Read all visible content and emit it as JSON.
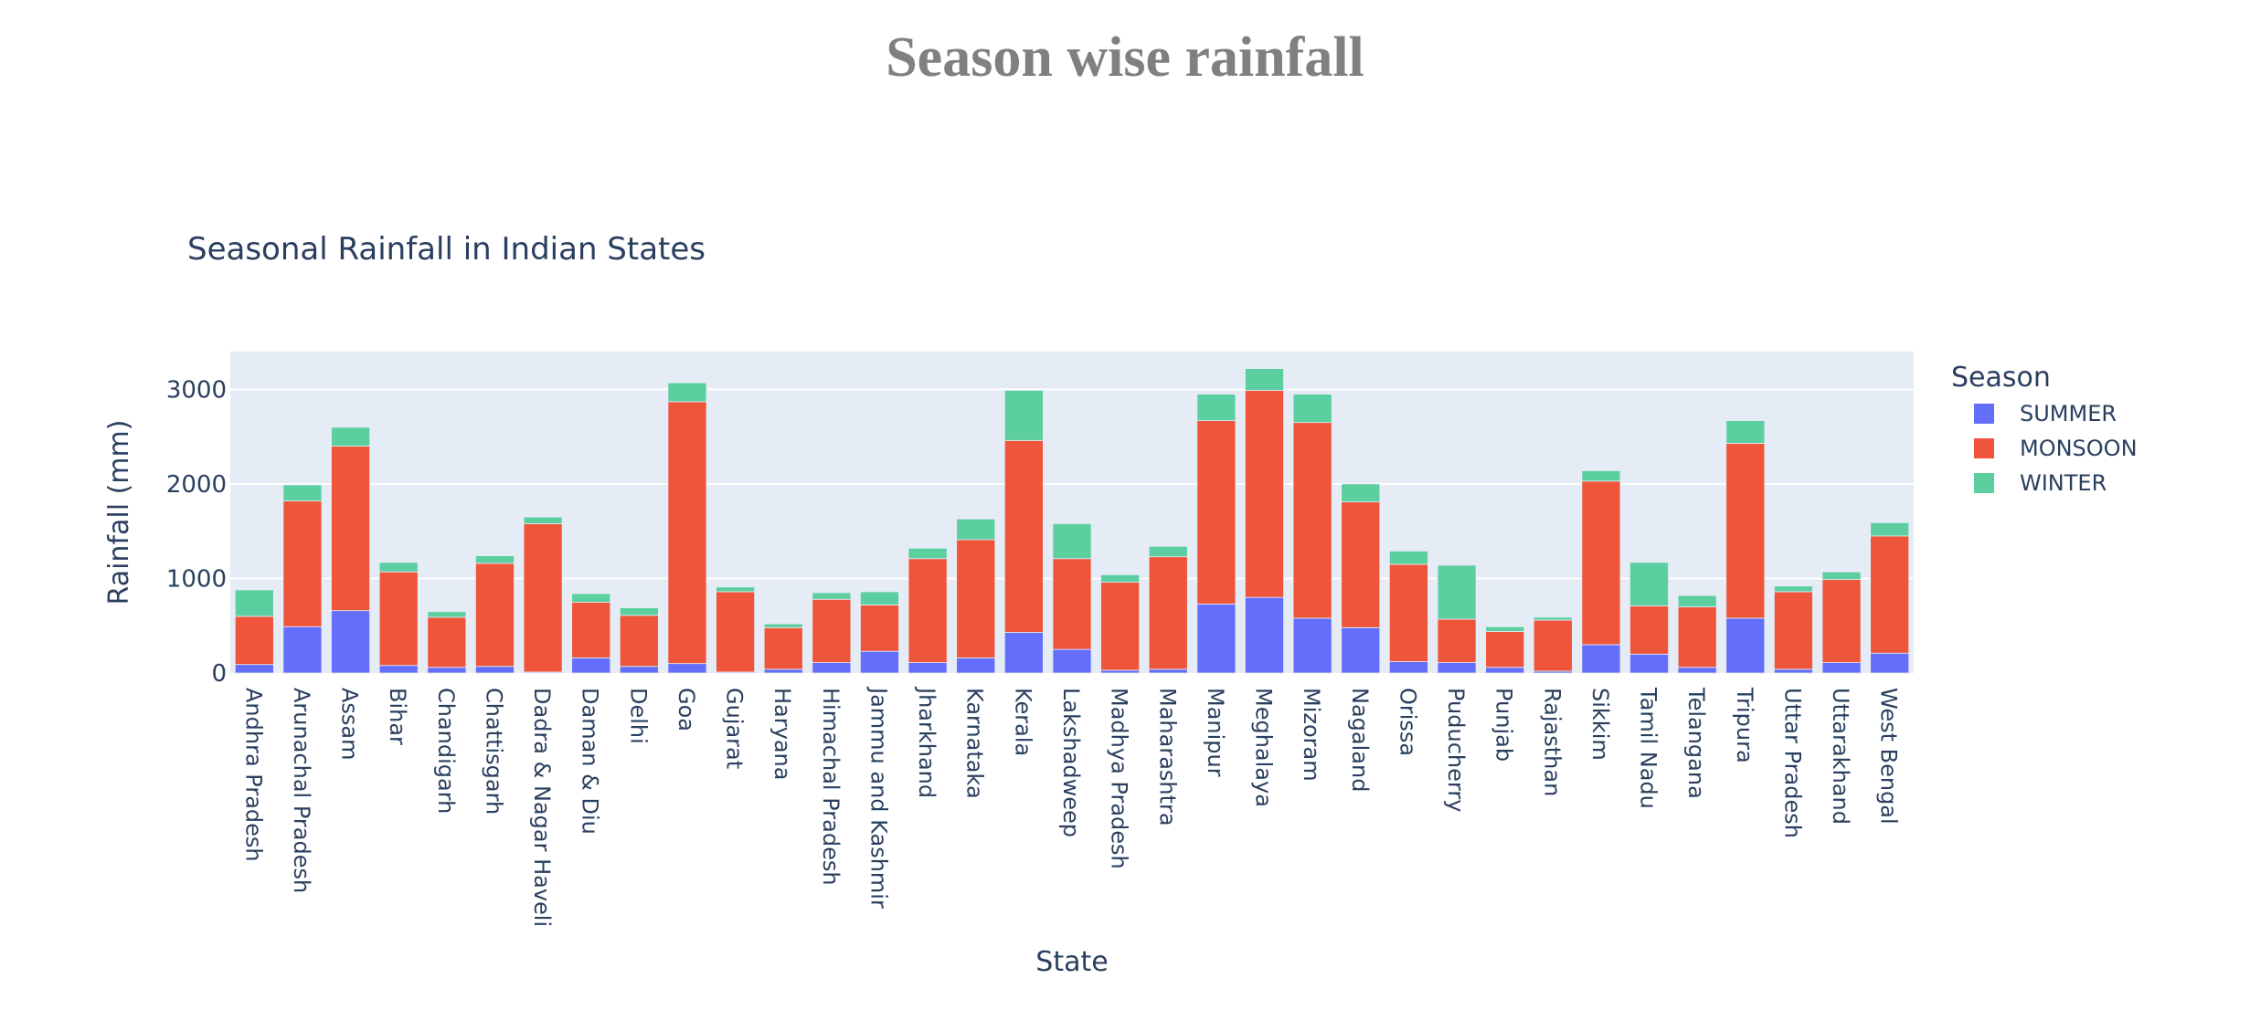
{
  "page": {
    "title": "Season wise rainfall"
  },
  "chart_data": {
    "type": "bar",
    "stacked": true,
    "title": "Seasonal Rainfall in Indian States",
    "xlabel": "State",
    "ylabel": "Rainfall (mm)",
    "ylim": [
      0,
      3400
    ],
    "yticks": [
      0,
      1000,
      2000,
      3000
    ],
    "grid": true,
    "legend": {
      "title": "Season",
      "position": "right"
    },
    "categories": [
      "Andhra Pradesh",
      "Arunachal Pradesh",
      "Assam",
      "Bihar",
      "Chandigarh",
      "Chattisgarh",
      "Dadra & Nagar Haveli",
      "Daman & Diu",
      "Delhi",
      "Goa",
      "Gujarat",
      "Haryana",
      "Himachal Pradesh",
      "Jammu and Kashmir",
      "Jharkhand",
      "Karnataka",
      "Kerala",
      "Lakshadweep",
      "Madhya Pradesh",
      "Maharashtra",
      "Manipur",
      "Meghalaya",
      "Mizoram",
      "Nagaland",
      "Orissa",
      "Puducherry",
      "Punjab",
      "Rajasthan",
      "Sikkim",
      "Tamil Nadu",
      "Telangana",
      "Tripura",
      "Uttar Pradesh",
      "Uttarakhand",
      "West Bengal"
    ],
    "series": [
      {
        "name": "SUMMER",
        "color": "#636efa",
        "values": [
          90,
          490,
          660,
          80,
          60,
          70,
          10,
          160,
          70,
          100,
          10,
          40,
          110,
          230,
          110,
          160,
          430,
          250,
          30,
          40,
          730,
          800,
          580,
          480,
          120,
          110,
          60,
          20,
          300,
          200,
          60,
          580,
          40,
          110,
          210
        ]
      },
      {
        "name": "MONSOON",
        "color": "#ef553b",
        "values": [
          510,
          1330,
          1740,
          990,
          530,
          1090,
          1570,
          590,
          540,
          2770,
          850,
          440,
          670,
          490,
          1100,
          1250,
          2030,
          960,
          930,
          1190,
          1940,
          2190,
          2070,
          1330,
          1030,
          460,
          380,
          540,
          1730,
          510,
          640,
          1850,
          820,
          880,
          1240
        ]
      },
      {
        "name": "WINTER",
        "color": "#5ccfa0",
        "values": [
          280,
          170,
          200,
          100,
          60,
          80,
          70,
          90,
          80,
          200,
          50,
          40,
          70,
          140,
          110,
          220,
          530,
          370,
          80,
          110,
          280,
          230,
          300,
          190,
          140,
          570,
          50,
          30,
          110,
          460,
          120,
          240,
          60,
          80,
          140
        ]
      }
    ]
  }
}
